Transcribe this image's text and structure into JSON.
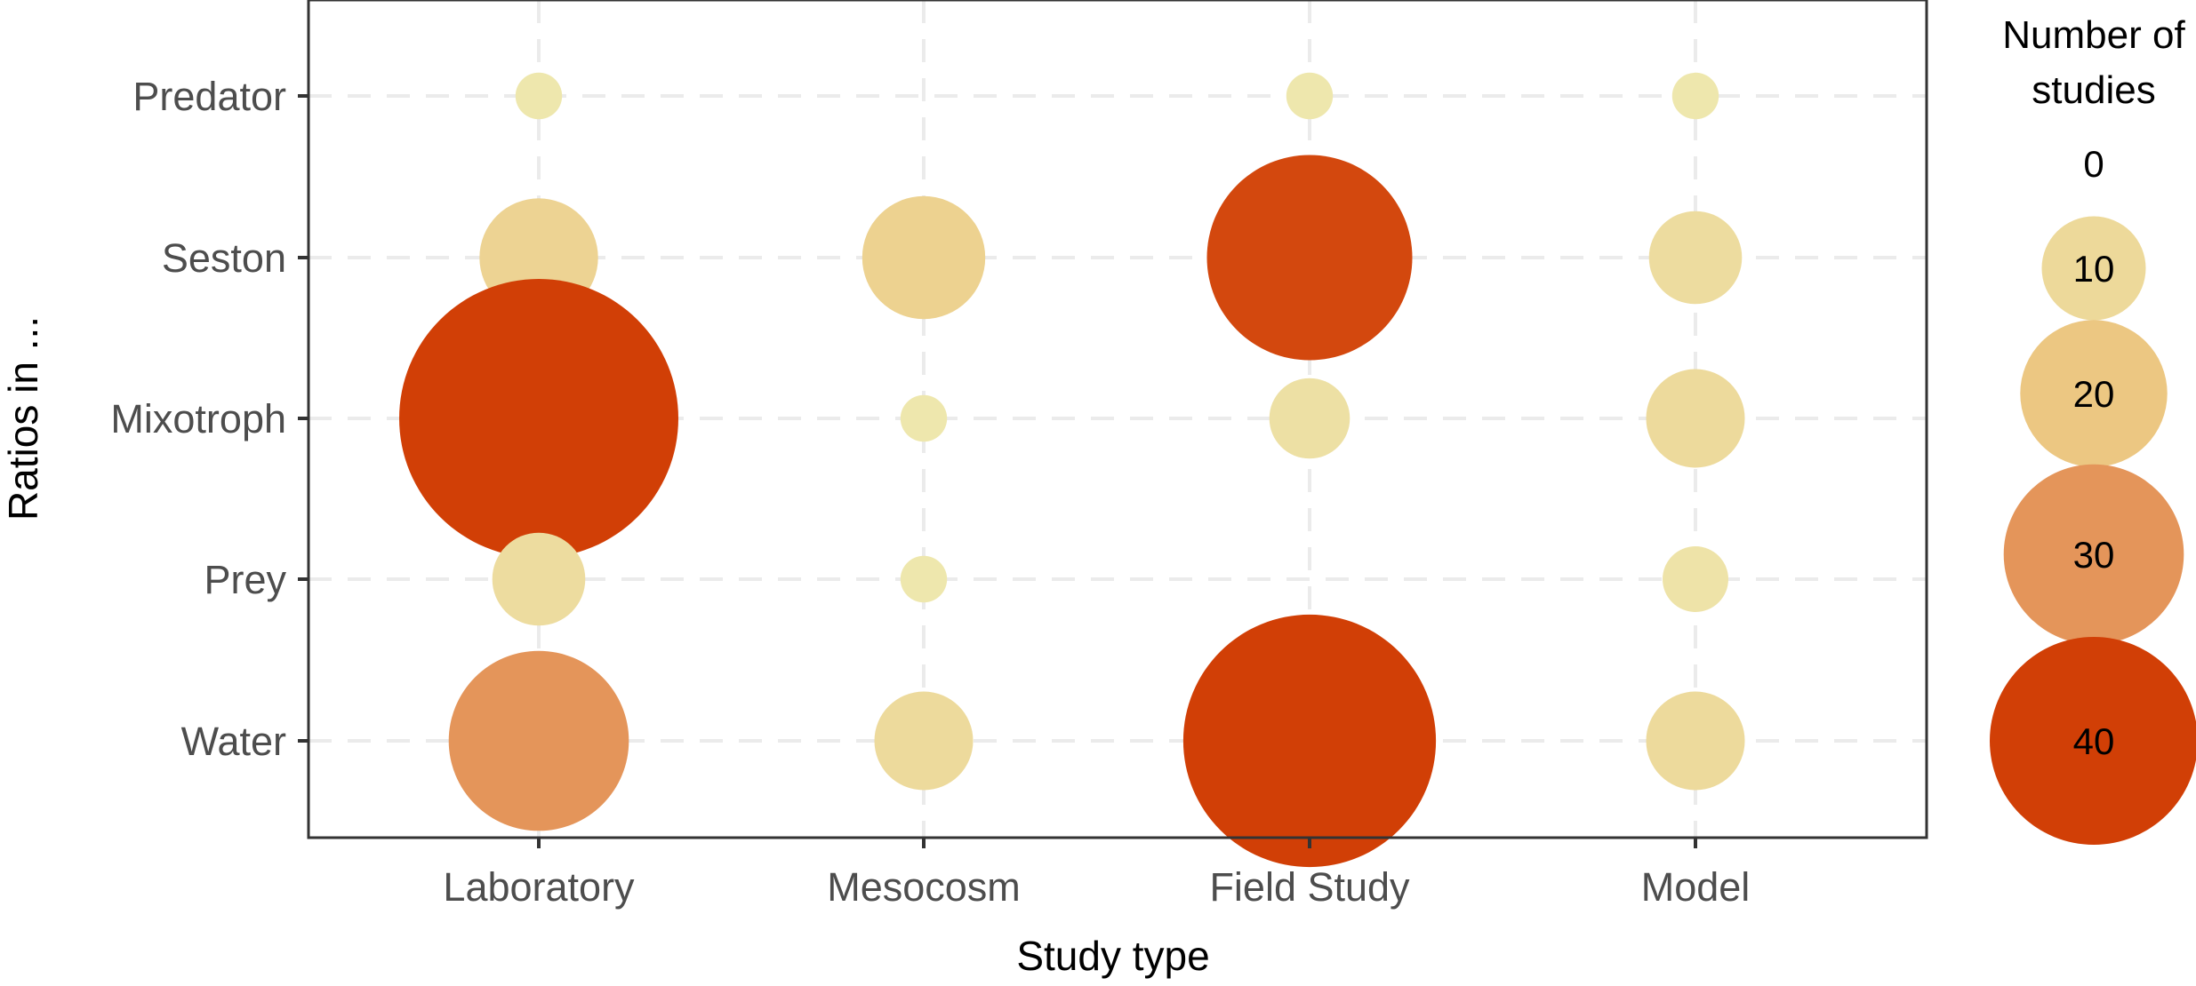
{
  "chart_data": {
    "type": "scatter",
    "subtype": "bubble",
    "title": "",
    "xlabel": "Study type",
    "ylabel": "Ratios in ...",
    "categories_x": [
      "Laboratory",
      "Mesocosm",
      "Field Study",
      "Model"
    ],
    "categories_y": [
      "Predator",
      "Seston",
      "Mixotroph",
      "Prey",
      "Water"
    ],
    "points": [
      {
        "x": "Laboratory",
        "y": "Predator",
        "value": 2
      },
      {
        "x": "Field Study",
        "y": "Predator",
        "value": 2
      },
      {
        "x": "Model",
        "y": "Predator",
        "value": 2
      },
      {
        "x": "Laboratory",
        "y": "Seston",
        "value": 13
      },
      {
        "x": "Mesocosm",
        "y": "Seston",
        "value": 14
      },
      {
        "x": "Field Study",
        "y": "Seston",
        "value": 39
      },
      {
        "x": "Model",
        "y": "Seston",
        "value": 8
      },
      {
        "x": "Laboratory",
        "y": "Mixotroph",
        "value": 72
      },
      {
        "x": "Mesocosm",
        "y": "Mixotroph",
        "value": 2
      },
      {
        "x": "Field Study",
        "y": "Mixotroph",
        "value": 6
      },
      {
        "x": "Model",
        "y": "Mixotroph",
        "value": 9
      },
      {
        "x": "Laboratory",
        "y": "Prey",
        "value": 8
      },
      {
        "x": "Mesocosm",
        "y": "Prey",
        "value": 2
      },
      {
        "x": "Field Study",
        "y": "Prey",
        "value": 0
      },
      {
        "x": "Model",
        "y": "Prey",
        "value": 4
      },
      {
        "x": "Laboratory",
        "y": "Water",
        "value": 30
      },
      {
        "x": "Mesocosm",
        "y": "Water",
        "value": 9
      },
      {
        "x": "Field Study",
        "y": "Water",
        "value": 59
      },
      {
        "x": "Model",
        "y": "Water",
        "value": 9
      }
    ],
    "size_legend": {
      "title_lines": [
        "Number of",
        "studies"
      ],
      "breaks": [
        0,
        10,
        20,
        30,
        40
      ]
    },
    "color_scale": {
      "low": "#eeeab2",
      "mid1": "#ecc782",
      "mid2": "#e4955a",
      "high": "#d13f06",
      "domain_max": 40
    },
    "grid": true,
    "legend_position": "right"
  }
}
